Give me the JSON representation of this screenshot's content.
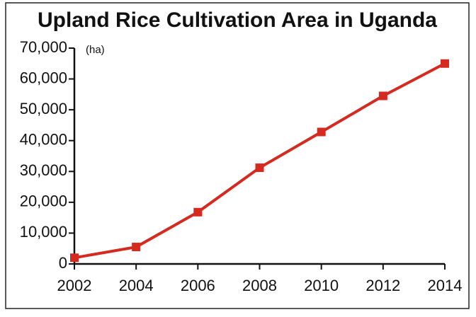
{
  "chart_data": {
    "type": "line",
    "title": "Upland Rice Cultivation Area in Uganda",
    "y_unit": "(ha)",
    "x": [
      2002,
      2004,
      2006,
      2008,
      2010,
      2012,
      2014
    ],
    "xlim": [
      2002,
      2014
    ],
    "xticks": [
      2002,
      2004,
      2006,
      2008,
      2010,
      2012,
      2014
    ],
    "series": [
      {
        "color": "#d42a20",
        "values": [
          2000,
          5500,
          16800,
          31200,
          42800,
          54500,
          65000
        ]
      }
    ],
    "ylim": [
      0,
      70000
    ],
    "yticks": [
      0,
      {
        "value": 10000,
        "label": "10,000"
      },
      {
        "value": 20000,
        "label": "20,000"
      },
      {
        "value": 30000,
        "label": "30,000"
      },
      {
        "value": 40000,
        "label": "40,000"
      },
      {
        "value": 50000,
        "label": "50,000"
      },
      {
        "value": 60000,
        "label": "60,000"
      },
      {
        "value": 70000,
        "label": "70,000"
      }
    ],
    "grid": false
  }
}
